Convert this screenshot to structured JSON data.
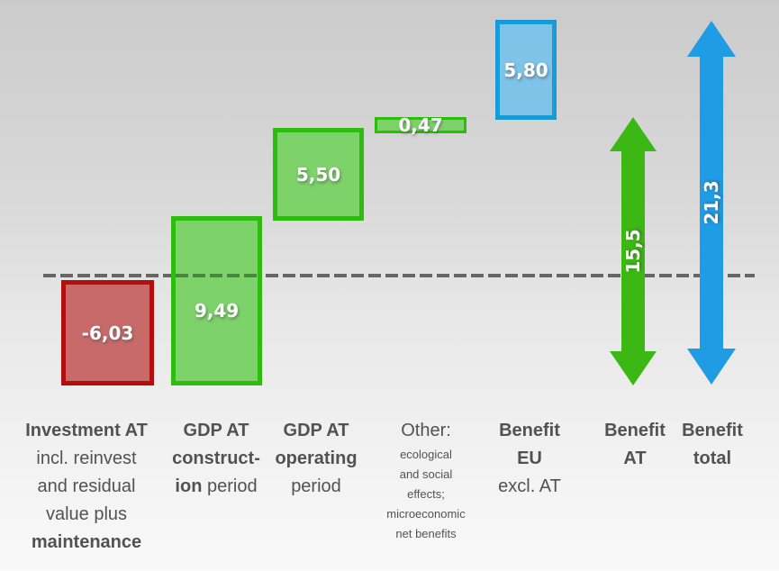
{
  "chart_data": {
    "type": "bar",
    "subtype": "waterfall",
    "title": "",
    "xlabel": "",
    "ylabel": "",
    "grid": "off",
    "legend": "none",
    "baseline_value": 0,
    "categories": [
      "Investment AT incl. reinvest and residual value plus maintenance",
      "GDP AT construction period",
      "GDP AT operating period",
      "Other: ecological and social effects; microeconomic net benefits",
      "Benefit EU excl. AT",
      "Benefit AT",
      "Benefit total"
    ],
    "values": [
      -6.03,
      9.49,
      5.5,
      0.47,
      5.8,
      15.5,
      21.3
    ],
    "value_labels": [
      "-6,03",
      "9,49",
      "5,50",
      "0,47",
      "5,80",
      "15,5",
      "21,3"
    ],
    "roles": [
      "negative-bar",
      "positive-bar",
      "positive-bar",
      "positive-bar",
      "eu-bar",
      "total-arrow-green",
      "total-arrow-blue"
    ],
    "colors": {
      "negative_fill": "#c96a6a",
      "negative_border": "#b30d0d",
      "positive_fill": "#7dd36a",
      "positive_border": "#2ebc10",
      "eu_fill": "#7fc4e8",
      "eu_border": "#1b9ad8",
      "arrow_benefit_at": "#3cb815",
      "arrow_benefit_total": "#1f9ce4",
      "baseline": "#666666",
      "label_text": "#525252",
      "value_text": "#ffffff"
    }
  },
  "bars": {
    "investment": {
      "value": "-6,03"
    },
    "gdp_construction": {
      "value": "9,49"
    },
    "gdp_operating": {
      "value": "5,50"
    },
    "other": {
      "value": "0,47"
    },
    "benefit_eu": {
      "value": "5,80"
    },
    "benefit_at": {
      "value": "15,5"
    },
    "benefit_total": {
      "value": "21,3"
    }
  },
  "columns": {
    "investment": {
      "l1": "Investment AT",
      "l2": "incl. reinvest",
      "l3": "and residual",
      "l4": "value plus",
      "l5": "maintenance"
    },
    "gdp_construction": {
      "l1": "GDP AT",
      "l2": "construct-",
      "l3_bold": "ion",
      "l3_rest": " period"
    },
    "gdp_operating": {
      "l1": "GDP AT",
      "l2": "operating",
      "l3": "period"
    },
    "other": {
      "l1": "Other:",
      "l2": "ecological",
      "l3": "and social",
      "l4": "effects;",
      "l5": "microeconomic",
      "l6": "net benefits"
    },
    "benefit_eu": {
      "l1": "Benefit",
      "l2": "EU",
      "l3": "excl. AT"
    },
    "benefit_at": {
      "l1": "Benefit",
      "l2": "AT"
    },
    "benefit_total": {
      "l1": "Benefit",
      "l2": "total"
    }
  }
}
